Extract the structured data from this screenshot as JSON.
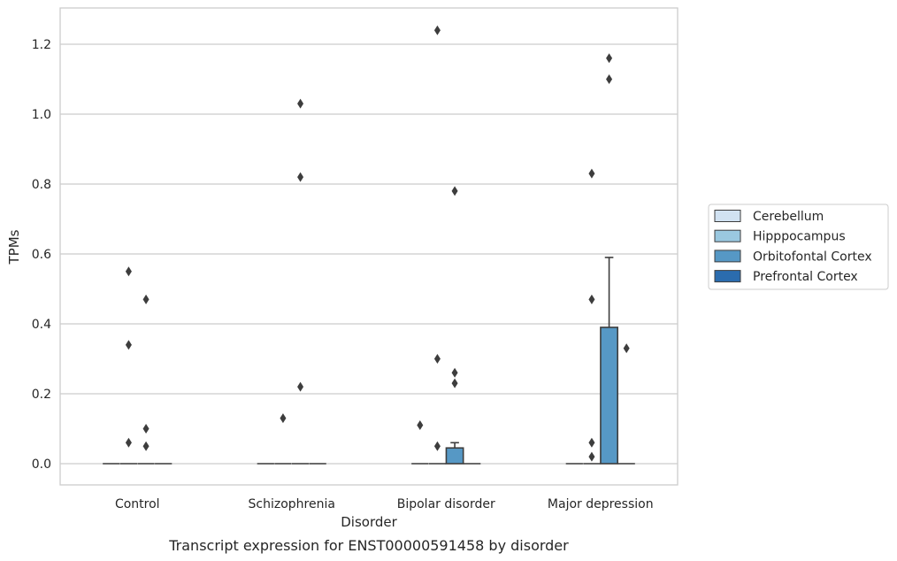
{
  "chart_data": {
    "type": "box",
    "xlabel": "Disorder",
    "ylabel": "TPMs",
    "caption": "Transcript expression for ENST00000591458 by disorder",
    "ylim": [
      -0.06,
      1.3
    ],
    "yticks": [
      "0.0",
      "0.2",
      "0.4",
      "0.6",
      "0.8",
      "1.0",
      "1.2"
    ],
    "ytick_values": [
      0.0,
      0.2,
      0.4,
      0.6,
      0.8,
      1.0,
      1.2
    ],
    "grid": true,
    "legend_position": "right",
    "categories": [
      "Control",
      "Schizophrenia",
      "Bipolar disorder",
      "Major depression"
    ],
    "series": [
      {
        "name": "Cerebellum",
        "color": "#d1e2f2",
        "boxes": [
          {
            "q1": 0,
            "median": 0,
            "q3": 0,
            "whisker_low": 0,
            "whisker_high": 0,
            "outliers": []
          },
          {
            "q1": 0,
            "median": 0,
            "q3": 0,
            "whisker_low": 0,
            "whisker_high": 0,
            "outliers": []
          },
          {
            "q1": 0,
            "median": 0,
            "q3": 0,
            "whisker_low": 0,
            "whisker_high": 0,
            "outliers": [
              0.11
            ]
          },
          {
            "q1": 0,
            "median": 0,
            "q3": 0,
            "whisker_low": 0,
            "whisker_high": 0,
            "outliers": []
          }
        ]
      },
      {
        "name": "Hipppocampus",
        "color": "#9ac8e0",
        "boxes": [
          {
            "q1": 0,
            "median": 0,
            "q3": 0,
            "whisker_low": 0,
            "whisker_high": 0,
            "outliers": [
              0.55,
              0.34,
              0.06
            ]
          },
          {
            "q1": 0,
            "median": 0,
            "q3": 0,
            "whisker_low": 0,
            "whisker_high": 0,
            "outliers": [
              0.13
            ]
          },
          {
            "q1": 0,
            "median": 0,
            "q3": 0,
            "whisker_low": 0,
            "whisker_high": 0,
            "outliers": [
              1.24,
              0.3,
              0.05
            ]
          },
          {
            "q1": 0,
            "median": 0,
            "q3": 0,
            "whisker_low": 0,
            "whisker_high": 0,
            "outliers": [
              0.47,
              0.83,
              0.06,
              0.02
            ]
          }
        ]
      },
      {
        "name": "Orbitofontal Cortex",
        "color": "#5698c5",
        "boxes": [
          {
            "q1": 0,
            "median": 0,
            "q3": 0,
            "whisker_low": 0,
            "whisker_high": 0,
            "outliers": [
              0.47,
              0.1,
              0.05
            ]
          },
          {
            "q1": 0,
            "median": 0,
            "q3": 0,
            "whisker_low": 0,
            "whisker_high": 0,
            "outliers": [
              1.03,
              0.82,
              0.22
            ]
          },
          {
            "q1": 0,
            "median": 0,
            "q3": 0.045,
            "whisker_low": 0,
            "whisker_high": 0.06,
            "outliers": [
              0.78,
              0.26,
              0.23
            ]
          },
          {
            "q1": 0,
            "median": 0,
            "q3": 0.39,
            "whisker_low": 0,
            "whisker_high": 0.59,
            "outliers": [
              1.16,
              1.1
            ]
          }
        ]
      },
      {
        "name": "Prefrontal Cortex",
        "color": "#2b6cae",
        "boxes": [
          {
            "q1": 0,
            "median": 0,
            "q3": 0,
            "whisker_low": 0,
            "whisker_high": 0,
            "outliers": []
          },
          {
            "q1": 0,
            "median": 0,
            "q3": 0,
            "whisker_low": 0,
            "whisker_high": 0,
            "outliers": []
          },
          {
            "q1": 0,
            "median": 0,
            "q3": 0,
            "whisker_low": 0,
            "whisker_high": 0,
            "outliers": []
          },
          {
            "q1": 0,
            "median": 0,
            "q3": 0,
            "whisker_low": 0,
            "whisker_high": 0,
            "outliers": [
              0.33
            ]
          }
        ]
      }
    ]
  }
}
